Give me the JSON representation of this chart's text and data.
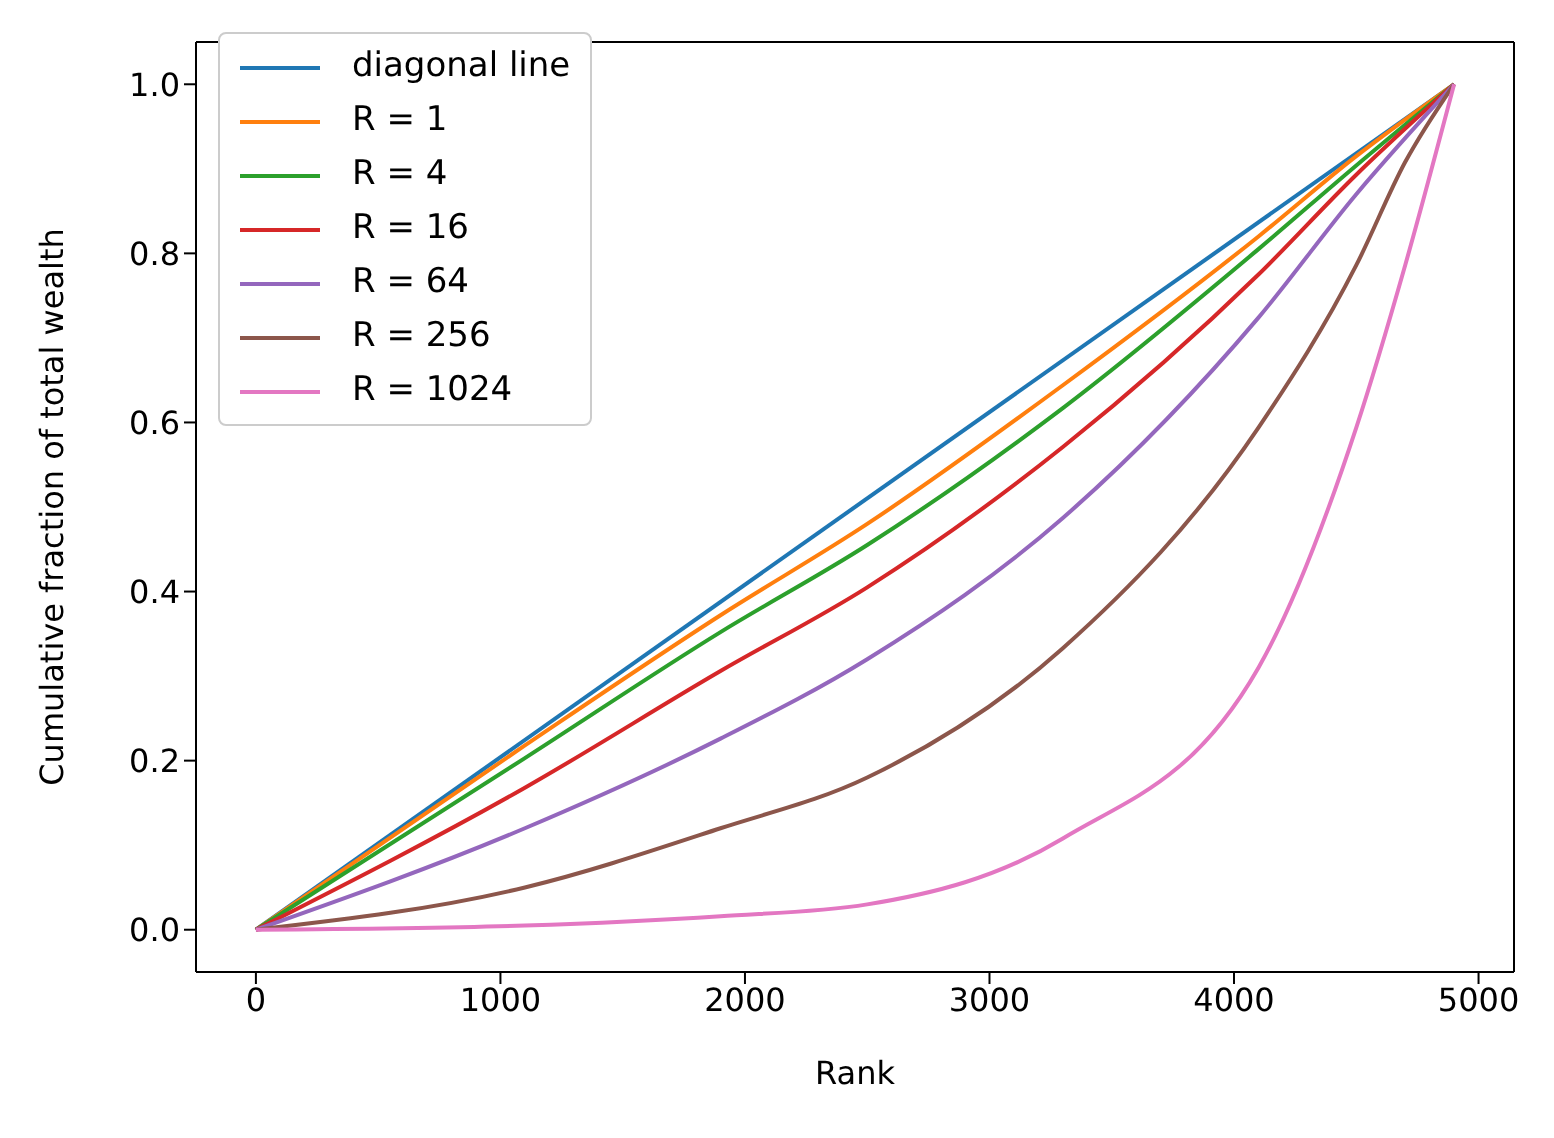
{
  "chart_data": {
    "type": "line",
    "xlabel": "Rank",
    "ylabel": "Cumulative fraction of total wealth",
    "xlim": [
      -245,
      5145
    ],
    "xticks": [
      0,
      1000,
      2000,
      3000,
      4000,
      5000
    ],
    "ylim": [
      -0.05,
      1.05
    ],
    "yticks": [
      {
        "value": 0,
        "label": "0.0"
      },
      {
        "value": 0.2,
        "label": "0.2"
      },
      {
        "value": 0.4,
        "label": "0.4"
      },
      {
        "value": 0.6,
        "label": "0.6"
      },
      {
        "value": 0.8,
        "label": "0.8"
      },
      {
        "value": 1,
        "label": "1.0"
      }
    ],
    "grid": false,
    "legend": "top left",
    "marker": "none",
    "line_style": "solid",
    "series": [
      {
        "name": "diagonal line",
        "color": "#1f77b4",
        "x": [
          0,
          4900
        ],
        "values": [
          0,
          1
        ]
      },
      {
        "name": "R = 1",
        "color": "#ff7f0e",
        "x": [
          0,
          1100,
          1900,
          2500,
          3300,
          4100,
          4500,
          4900
        ],
        "values": [
          0,
          0.218,
          0.372,
          0.48,
          0.644,
          0.82,
          0.915,
          1
        ]
      },
      {
        "name": "R = 4",
        "color": "#2ca02c",
        "x": [
          0,
          1100,
          1900,
          2500,
          3300,
          4100,
          4500,
          4900
        ],
        "values": [
          0,
          0.203,
          0.352,
          0.455,
          0.617,
          0.805,
          0.904,
          1
        ]
      },
      {
        "name": "R = 16",
        "color": "#d62728",
        "x": [
          0,
          1100,
          1900,
          2500,
          3300,
          4100,
          4500,
          4900
        ],
        "values": [
          0,
          0.168,
          0.306,
          0.405,
          0.571,
          0.775,
          0.893,
          1
        ]
      },
      {
        "name": "R = 64",
        "color": "#9467bd",
        "x": [
          0,
          1100,
          1900,
          2500,
          3300,
          4100,
          4500,
          4900
        ],
        "values": [
          0,
          0.12,
          0.226,
          0.32,
          0.487,
          0.724,
          0.87,
          1
        ]
      },
      {
        "name": "R = 256",
        "color": "#8c564b",
        "x": [
          0,
          1100,
          1900,
          2500,
          3300,
          4100,
          4500,
          4700,
          4900
        ],
        "values": [
          0,
          0.05,
          0.12,
          0.18,
          0.333,
          0.594,
          0.786,
          0.908,
          1
        ]
      },
      {
        "name": "R = 1024",
        "color": "#e377c2",
        "x": [
          0,
          1100,
          1900,
          2500,
          3300,
          4100,
          4500,
          4700,
          4900
        ],
        "values": [
          0,
          0.005,
          0.016,
          0.03,
          0.108,
          0.31,
          0.594,
          0.786,
          1
        ]
      }
    ]
  }
}
